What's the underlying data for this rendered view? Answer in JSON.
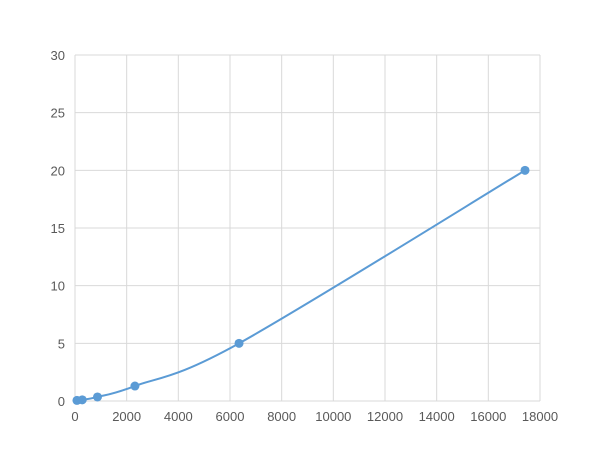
{
  "chart_data": {
    "type": "scatter",
    "title": "",
    "xlabel": "",
    "ylabel": "",
    "xlim": [
      0,
      18000
    ],
    "ylim": [
      0,
      30
    ],
    "x_ticks": [
      "0",
      "2000",
      "4000",
      "6000",
      "8000",
      "10000",
      "12000",
      "14000",
      "16000",
      "18000"
    ],
    "y_ticks": [
      "0",
      "5",
      "10",
      "15",
      "20",
      "25",
      "30"
    ],
    "grid": true,
    "legend": "none",
    "series": [
      {
        "color": "#5b9bd5",
        "smooth_line": true,
        "x": [
          75,
          280,
          870,
          2320,
          6350,
          17420
        ],
        "y": [
          0.05,
          0.1,
          0.35,
          1.3,
          5,
          20
        ]
      }
    ]
  }
}
